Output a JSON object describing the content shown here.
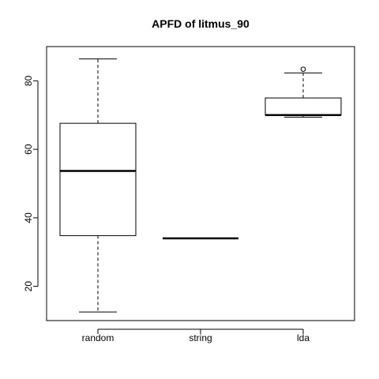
{
  "chart_data": {
    "type": "box",
    "title": "APFD of litmus_90",
    "xlabel": "",
    "ylabel": "",
    "ylim": [
      10,
      90
    ],
    "y_ticks": [
      20,
      40,
      60,
      80
    ],
    "grid": false,
    "categories": [
      "random",
      "string",
      "lda"
    ],
    "boxes": [
      {
        "category": "random",
        "whisker_low": 12.5,
        "q1": 34.8,
        "median": 53.7,
        "q3": 67.6,
        "whisker_high": 86.4,
        "outliers": []
      },
      {
        "category": "string",
        "whisker_low": 34.0,
        "q1": 34.0,
        "median": 34.0,
        "q3": 34.0,
        "whisker_high": 34.0,
        "outliers": []
      },
      {
        "category": "lda",
        "whisker_low": 69.4,
        "q1": 70.0,
        "median": 70.0,
        "q3": 75.0,
        "whisker_high": 82.3,
        "outliers": [
          83.4
        ]
      }
    ],
    "colors": {
      "box_fill": "#ffffff",
      "stroke": "#000000"
    }
  }
}
